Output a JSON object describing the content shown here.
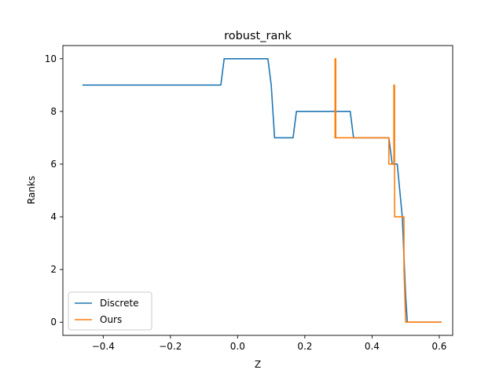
{
  "chart_data": {
    "type": "line",
    "title": "robust_rank",
    "xlabel": "Z",
    "ylabel": "Ranks",
    "xlim": [
      -0.52,
      0.64
    ],
    "ylim": [
      -0.5,
      10.5
    ],
    "x_ticks": [
      -0.4,
      -0.2,
      0.0,
      0.2,
      0.4,
      0.6
    ],
    "x_tick_labels": [
      "−0.4",
      "−0.2",
      "0.0",
      "0.2",
      "0.4",
      "0.6"
    ],
    "y_ticks": [
      0,
      2,
      4,
      6,
      8,
      10
    ],
    "y_tick_labels": [
      "0",
      "2",
      "4",
      "6",
      "8",
      "10"
    ],
    "grid": false,
    "legend_position": "lower-left",
    "series": [
      {
        "name": "Discrete",
        "color": "#1f77b4",
        "points": [
          [
            -0.46,
            9
          ],
          [
            -0.05,
            9
          ],
          [
            -0.04,
            10
          ],
          [
            0.09,
            10
          ],
          [
            0.1,
            9
          ],
          [
            0.11,
            7
          ],
          [
            0.165,
            7
          ],
          [
            0.175,
            8
          ],
          [
            0.335,
            8
          ],
          [
            0.345,
            7
          ],
          [
            0.45,
            7
          ],
          [
            0.46,
            6
          ],
          [
            0.475,
            6
          ],
          [
            0.49,
            4
          ],
          [
            0.5,
            1
          ],
          [
            0.505,
            0
          ],
          [
            0.605,
            0
          ]
        ]
      },
      {
        "name": "Ours",
        "color": "#ff7f0e",
        "points": [
          [
            0.29,
            7
          ],
          [
            0.29,
            10
          ],
          [
            0.292,
            10
          ],
          [
            0.292,
            7
          ],
          [
            0.45,
            7
          ],
          [
            0.45,
            6
          ],
          [
            0.465,
            6
          ],
          [
            0.465,
            9
          ],
          [
            0.467,
            9
          ],
          [
            0.467,
            4
          ],
          [
            0.495,
            4
          ],
          [
            0.495,
            2
          ],
          [
            0.5,
            0
          ],
          [
            0.605,
            0
          ]
        ]
      }
    ]
  }
}
